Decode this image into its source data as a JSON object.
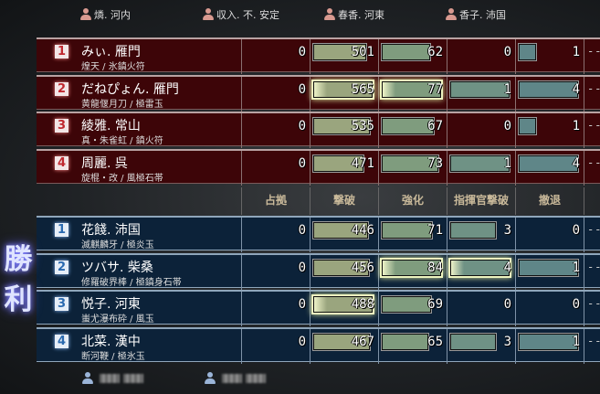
{
  "top_players": [
    "燐. 河内",
    "収入. 不. 安定",
    "春香. 河東",
    "香子. 沛国"
  ],
  "columns": [
    "占拠",
    "撃破",
    "強化",
    "指揮官撃破",
    "撤退"
  ],
  "overflow_column": "- -",
  "victory_label": "勝利",
  "colors": {
    "red_team": "#3d0508",
    "blue_team": "#0c2239",
    "bar_1": "#9aa57e",
    "bar_2": "#7f9c7e",
    "bar_3": "#6f9285",
    "bar_4": "#5f8688"
  },
  "red_team": [
    {
      "rank": "1",
      "name": "みぃ. 雁門",
      "weapons": "煌天 / 氷鎮火符",
      "stats": [
        0,
        501,
        62,
        0,
        1
      ],
      "highlight": [
        false,
        false,
        false,
        false,
        false
      ]
    },
    {
      "rank": "2",
      "name": "だねぴょん. 雁門",
      "weapons": "黄龍偃月刀 / 極雷玉",
      "stats": [
        0,
        565,
        77,
        1,
        4
      ],
      "highlight": [
        false,
        true,
        true,
        false,
        false
      ]
    },
    {
      "rank": "3",
      "name": "綾雅. 常山",
      "weapons": "真・朱雀虹 / 鎮火符",
      "stats": [
        0,
        535,
        67,
        0,
        1
      ],
      "highlight": [
        false,
        false,
        false,
        false,
        false
      ]
    },
    {
      "rank": "4",
      "name": "周麗. 呉",
      "weapons": "旋棍・改 / 風極石帯",
      "stats": [
        0,
        471,
        73,
        1,
        4
      ],
      "highlight": [
        false,
        false,
        false,
        false,
        false
      ]
    }
  ],
  "blue_team": [
    {
      "rank": "1",
      "name": "花餞. 沛国",
      "weapons": "滅麒麟牙 / 極炎玉",
      "stats": [
        0,
        446,
        71,
        3,
        0
      ],
      "highlight": [
        false,
        false,
        false,
        false,
        false
      ]
    },
    {
      "rank": "2",
      "name": "ツバサ. 柴桑",
      "weapons": "修羅破界棒 / 極鎮身石帯",
      "stats": [
        0,
        456,
        84,
        4,
        1
      ],
      "highlight": [
        false,
        false,
        true,
        true,
        false
      ]
    },
    {
      "rank": "3",
      "name": "悦子. 河東",
      "weapons": "蚩尤瀑布砕 / 風玉",
      "stats": [
        0,
        488,
        69,
        0,
        0
      ],
      "highlight": [
        false,
        true,
        false,
        false,
        false
      ]
    },
    {
      "rank": "4",
      "name": "北菜. 漢中",
      "weapons": "断河鞭 / 極氷玉",
      "stats": [
        0,
        467,
        65,
        3,
        1
      ],
      "highlight": [
        false,
        false,
        false,
        false,
        false
      ]
    }
  ],
  "bottom_players_blurred": 2
}
